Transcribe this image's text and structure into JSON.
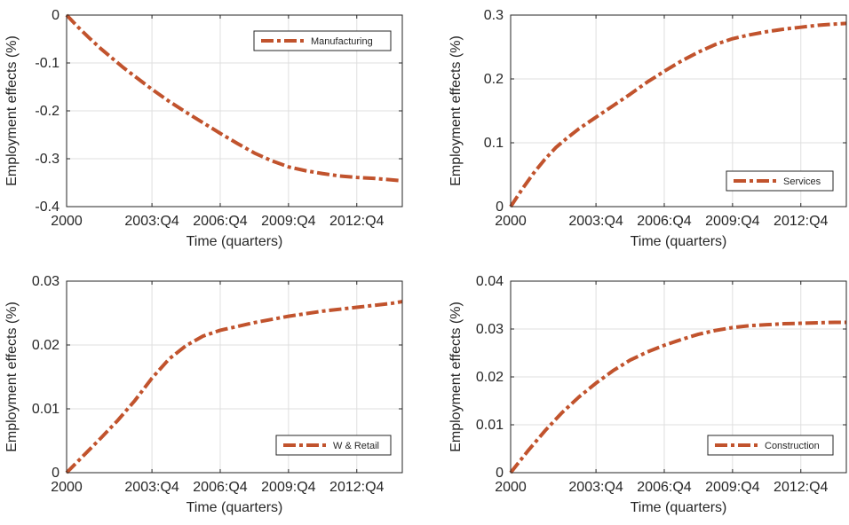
{
  "colors": {
    "series": "#c1532d",
    "axis": "#262626",
    "grid": "#dfdfdf",
    "background": "#ffffff"
  },
  "chart_data": [
    {
      "type": "line",
      "xlabel": "Time (quarters)",
      "ylabel": "Employment effects (%)",
      "xlim": [
        0,
        59
      ],
      "ylim": [
        -0.4,
        0
      ],
      "x_ticks": [
        {
          "x": 0,
          "label": "2000"
        },
        {
          "x": 15,
          "label": "2003:Q4"
        },
        {
          "x": 27,
          "label": "2006:Q4"
        },
        {
          "x": 39,
          "label": "2009:Q4"
        },
        {
          "x": 51,
          "label": "2012:Q4"
        }
      ],
      "y_ticks": [
        {
          "y": 0,
          "label": "0"
        },
        {
          "y": -0.1,
          "label": "-0.1"
        },
        {
          "y": -0.2,
          "label": "-0.2"
        },
        {
          "y": -0.3,
          "label": "-0.3"
        },
        {
          "y": -0.4,
          "label": "-0.4"
        }
      ],
      "grid": true,
      "legend_position": "top-right",
      "series": [
        {
          "name": "Manufacturing",
          "style": "dash-dot",
          "x": [
            0,
            2,
            4,
            6,
            8,
            10,
            12,
            15,
            18,
            21,
            24,
            27,
            30,
            33,
            36,
            39,
            42,
            45,
            48,
            51,
            54,
            57,
            59
          ],
          "y": [
            0,
            -0.025,
            -0.048,
            -0.07,
            -0.09,
            -0.11,
            -0.128,
            -0.155,
            -0.18,
            -0.203,
            -0.225,
            -0.247,
            -0.268,
            -0.288,
            -0.304,
            -0.317,
            -0.325,
            -0.331,
            -0.336,
            -0.339,
            -0.341,
            -0.344,
            -0.346
          ]
        }
      ]
    },
    {
      "type": "line",
      "xlabel": "Time (quarters)",
      "ylabel": "Employment effects (%)",
      "xlim": [
        0,
        59
      ],
      "ylim": [
        0,
        0.3
      ],
      "x_ticks": [
        {
          "x": 0,
          "label": "2000"
        },
        {
          "x": 15,
          "label": "2003:Q4"
        },
        {
          "x": 27,
          "label": "2006:Q4"
        },
        {
          "x": 39,
          "label": "2009:Q4"
        },
        {
          "x": 51,
          "label": "2012:Q4"
        }
      ],
      "y_ticks": [
        {
          "y": 0,
          "label": "0"
        },
        {
          "y": 0.1,
          "label": "0.1"
        },
        {
          "y": 0.2,
          "label": "0.2"
        },
        {
          "y": 0.3,
          "label": "0.3"
        }
      ],
      "grid": true,
      "legend_position": "bottom-right",
      "series": [
        {
          "name": "Services",
          "style": "dash-dot",
          "x": [
            0,
            2,
            4,
            6,
            8,
            10,
            12,
            15,
            18,
            21,
            24,
            27,
            30,
            33,
            36,
            39,
            42,
            45,
            48,
            51,
            54,
            57,
            59
          ],
          "y": [
            0,
            0.027,
            0.052,
            0.074,
            0.093,
            0.108,
            0.122,
            0.14,
            0.158,
            0.176,
            0.195,
            0.212,
            0.228,
            0.242,
            0.254,
            0.263,
            0.269,
            0.274,
            0.278,
            0.281,
            0.284,
            0.286,
            0.287
          ]
        }
      ]
    },
    {
      "type": "line",
      "xlabel": "Time (quarters)",
      "ylabel": "Employment effects (%)",
      "xlim": [
        0,
        59
      ],
      "ylim": [
        0,
        0.03
      ],
      "x_ticks": [
        {
          "x": 0,
          "label": "2000"
        },
        {
          "x": 15,
          "label": "2003:Q4"
        },
        {
          "x": 27,
          "label": "2006:Q4"
        },
        {
          "x": 39,
          "label": "2009:Q4"
        },
        {
          "x": 51,
          "label": "2012:Q4"
        }
      ],
      "y_ticks": [
        {
          "y": 0,
          "label": "0"
        },
        {
          "y": 0.01,
          "label": "0.01"
        },
        {
          "y": 0.02,
          "label": "0.02"
        },
        {
          "y": 0.03,
          "label": "0.03"
        }
      ],
      "grid": true,
      "legend_position": "bottom-right",
      "series": [
        {
          "name": "W & Retail",
          "style": "dash-dot",
          "x": [
            0,
            3,
            6,
            9,
            12,
            15,
            18,
            21,
            24,
            27,
            30,
            33,
            36,
            39,
            42,
            45,
            48,
            51,
            54,
            57,
            59
          ],
          "y": [
            0,
            0.0027,
            0.0054,
            0.0082,
            0.0113,
            0.0148,
            0.0178,
            0.0199,
            0.0214,
            0.0223,
            0.0229,
            0.0235,
            0.024,
            0.0245,
            0.0249,
            0.0253,
            0.0256,
            0.0259,
            0.0262,
            0.0265,
            0.0268
          ]
        }
      ]
    },
    {
      "type": "line",
      "xlabel": "Time (quarters)",
      "ylabel": "Employment effects (%)",
      "xlim": [
        0,
        59
      ],
      "ylim": [
        0,
        0.04
      ],
      "x_ticks": [
        {
          "x": 0,
          "label": "2000"
        },
        {
          "x": 15,
          "label": "2003:Q4"
        },
        {
          "x": 27,
          "label": "2006:Q4"
        },
        {
          "x": 39,
          "label": "2009:Q4"
        },
        {
          "x": 51,
          "label": "2012:Q4"
        }
      ],
      "y_ticks": [
        {
          "y": 0,
          "label": "0"
        },
        {
          "y": 0.01,
          "label": "0.01"
        },
        {
          "y": 0.02,
          "label": "0.02"
        },
        {
          "y": 0.03,
          "label": "0.03"
        },
        {
          "y": 0.04,
          "label": "0.04"
        }
      ],
      "grid": true,
      "legend_position": "bottom-right",
      "series": [
        {
          "name": "Construction",
          "style": "dash-dot",
          "x": [
            0,
            3,
            6,
            9,
            12,
            15,
            18,
            21,
            24,
            27,
            30,
            33,
            36,
            39,
            42,
            45,
            48,
            51,
            54,
            57,
            59
          ],
          "y": [
            0,
            0.0045,
            0.0087,
            0.0125,
            0.0158,
            0.0187,
            0.0213,
            0.0235,
            0.0252,
            0.0266,
            0.0278,
            0.0289,
            0.0297,
            0.0303,
            0.0307,
            0.0309,
            0.0311,
            0.0312,
            0.0313,
            0.0314,
            0.0314
          ]
        }
      ]
    }
  ]
}
